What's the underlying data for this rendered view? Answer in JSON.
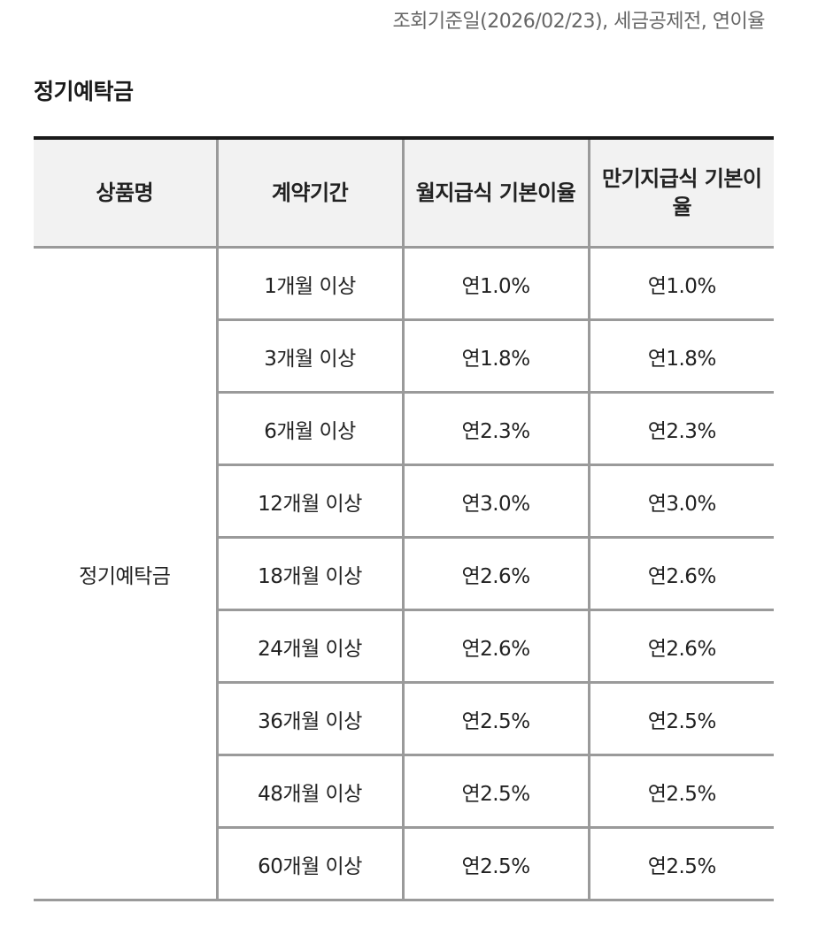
{
  "notice": "조회기준일(2026/02/23), 세금공제전, 연이율",
  "section_title": "정기예탁금",
  "table": {
    "headers": [
      "상품명",
      "계약기간",
      "월지급식 기본이율",
      "만기지급식 기본이율"
    ],
    "product_name": "정기예탁금",
    "rows": [
      {
        "term": "1개월 이상",
        "monthly_rate": "연1.0%",
        "maturity_rate": "연1.0%"
      },
      {
        "term": "3개월 이상",
        "monthly_rate": "연1.8%",
        "maturity_rate": "연1.8%"
      },
      {
        "term": "6개월 이상",
        "monthly_rate": "연2.3%",
        "maturity_rate": "연2.3%"
      },
      {
        "term": "12개월 이상",
        "monthly_rate": "연3.0%",
        "maturity_rate": "연3.0%"
      },
      {
        "term": "18개월 이상",
        "monthly_rate": "연2.6%",
        "maturity_rate": "연2.6%"
      },
      {
        "term": "24개월 이상",
        "monthly_rate": "연2.6%",
        "maturity_rate": "연2.6%"
      },
      {
        "term": "36개월 이상",
        "monthly_rate": "연2.5%",
        "maturity_rate": "연2.5%"
      },
      {
        "term": "48개월 이상",
        "monthly_rate": "연2.5%",
        "maturity_rate": "연2.5%"
      },
      {
        "term": "60개월 이상",
        "monthly_rate": "연2.5%",
        "maturity_rate": "연2.5%"
      }
    ]
  }
}
